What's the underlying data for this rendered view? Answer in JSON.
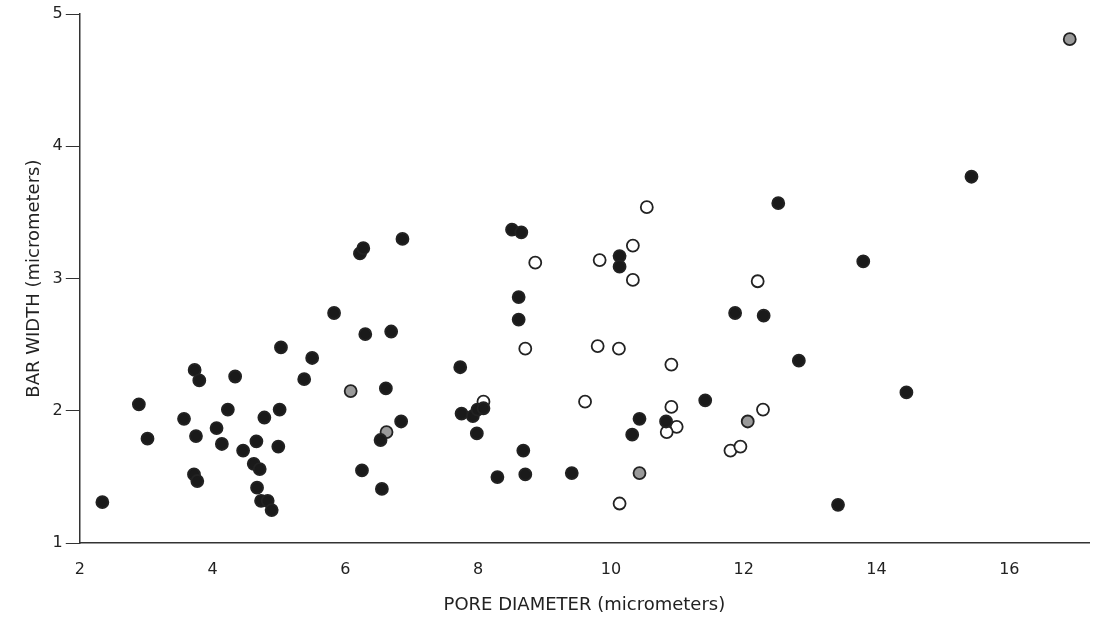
{
  "chart_data": {
    "type": "scatter",
    "xlabel": "PORE DIAMETER (micrometers)",
    "ylabel": "BAR WIDTH (micrometers)",
    "xlim": [
      2,
      17.2
    ],
    "ylim": [
      1,
      5
    ],
    "xticks": [
      2,
      4,
      6,
      8,
      10,
      12,
      14,
      16
    ],
    "yticks": [
      1,
      2,
      3,
      4,
      5
    ],
    "grid": false,
    "legend": false,
    "marker": "circle",
    "series": [
      {
        "color": "#1a1a1a",
        "x": [
          2.34,
          2.89,
          3.02,
          3.57,
          3.73,
          3.8,
          3.75,
          3.72,
          3.77,
          4.06,
          4.14,
          4.23,
          4.34,
          4.46,
          4.62,
          4.71,
          4.67,
          4.73,
          4.83,
          4.89,
          4.66,
          4.78,
          5.01,
          4.99,
          5.03,
          5.38,
          5.5,
          5.83,
          6.22,
          6.27,
          6.86,
          6.3,
          6.69,
          6.61,
          6.84,
          6.53,
          6.25,
          6.55,
          7.73,
          7.75,
          7.92,
          7.99,
          8.08,
          7.98,
          8.51,
          8.65,
          8.61,
          8.61,
          8.68,
          8.71,
          8.29,
          9.41,
          10.13,
          10.13,
          10.43,
          10.32,
          10.83,
          11.42,
          11.87,
          12.3,
          12.52,
          15.43,
          13.8,
          12.83,
          14.45,
          13.42
        ],
        "values": [
          1.31,
          2.05,
          1.79,
          1.94,
          2.31,
          2.23,
          1.81,
          1.52,
          1.47,
          1.87,
          1.75,
          2.01,
          2.26,
          1.7,
          1.6,
          1.56,
          1.42,
          1.32,
          1.32,
          1.25,
          1.77,
          1.95,
          2.01,
          1.73,
          2.48,
          2.24,
          2.4,
          2.74,
          3.19,
          3.23,
          3.3,
          2.58,
          2.6,
          2.17,
          1.92,
          1.78,
          1.55,
          1.41,
          2.33,
          1.98,
          1.96,
          2.01,
          2.02,
          1.83,
          3.37,
          3.35,
          2.86,
          2.69,
          1.7,
          1.52,
          1.5,
          1.53,
          3.17,
          3.09,
          1.94,
          1.82,
          1.92,
          2.08,
          2.74,
          2.72,
          3.57,
          3.77,
          3.13,
          2.38,
          2.14,
          1.29
        ]
      },
      {
        "color": "#ffffff",
        "x": [
          8.08,
          10.54,
          10.33,
          9.83,
          8.86,
          10.33,
          12.21,
          8.71,
          9.8,
          10.12,
          10.91,
          9.61,
          10.91,
          10.99,
          10.84,
          12.29,
          11.8,
          11.95,
          10.13
        ],
        "values": [
          2.07,
          3.54,
          3.25,
          3.14,
          3.12,
          2.99,
          2.98,
          2.47,
          2.49,
          2.47,
          2.35,
          2.07,
          2.03,
          1.88,
          1.84,
          2.01,
          1.7,
          1.73,
          1.3
        ]
      },
      {
        "color": "#9a9a9a",
        "x": [
          6.08,
          6.62,
          10.43,
          12.06,
          16.91
        ],
        "values": [
          2.15,
          1.84,
          1.53,
          1.92,
          4.81
        ]
      }
    ]
  }
}
